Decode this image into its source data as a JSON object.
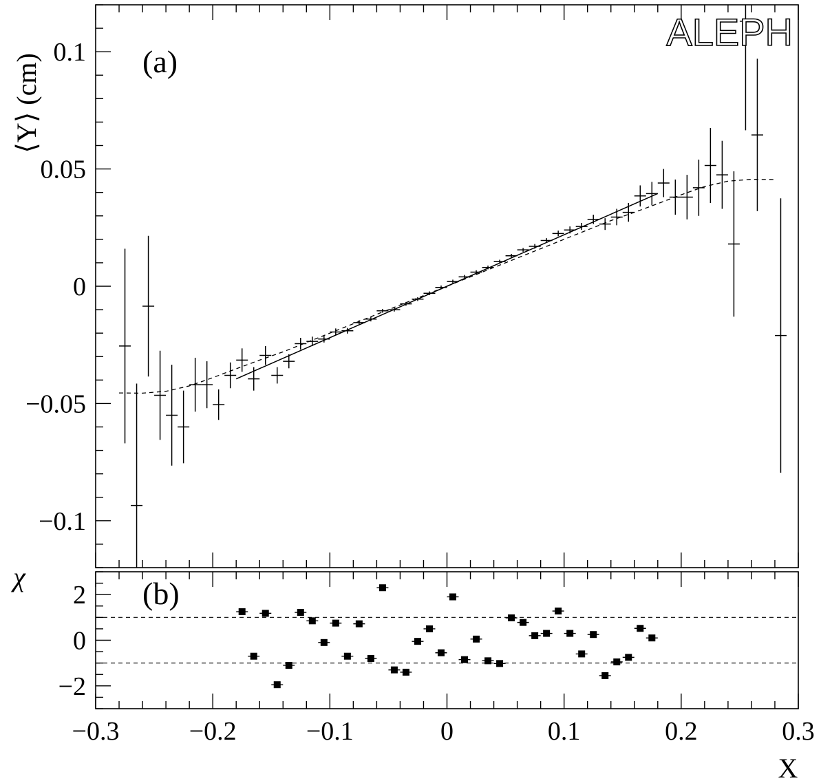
{
  "figure": {
    "experiment_logo": "ALEPH"
  },
  "chart_data": [
    {
      "type": "scatter",
      "panel_label": "(a)",
      "ylabel": "⟨Y⟩ (cm)",
      "xlabel": "",
      "xlim": [
        -0.3,
        0.3
      ],
      "ylim": [
        -0.12,
        0.12
      ],
      "x_ticks": [
        -0.3,
        -0.2,
        -0.1,
        0,
        0.1,
        0.2,
        0.3
      ],
      "y_ticks": [
        -0.1,
        -0.05,
        0,
        0.05,
        0.1
      ],
      "y_tick_labels": [
        "−0.1",
        "−0.05",
        "0",
        "0.05",
        "0.1"
      ],
      "grid": false,
      "series": [
        {
          "style": "data points with error bars",
          "x_halfwidth": 0.005,
          "points": [
            {
              "x": -0.275,
              "y": -0.0255,
              "err": 0.0415
            },
            {
              "x": -0.265,
              "y": -0.0935,
              "err": 0.052
            },
            {
              "x": -0.255,
              "y": -0.0085,
              "err": 0.03
            },
            {
              "x": -0.245,
              "y": -0.0465,
              "err": 0.019
            },
            {
              "x": -0.235,
              "y": -0.055,
              "err": 0.0215
            },
            {
              "x": -0.225,
              "y": -0.06,
              "err": 0.0155
            },
            {
              "x": -0.215,
              "y": -0.042,
              "err": 0.0115
            },
            {
              "x": -0.205,
              "y": -0.042,
              "err": 0.01
            },
            {
              "x": -0.195,
              "y": -0.0505,
              "err": 0.0065
            },
            {
              "x": -0.185,
              "y": -0.038,
              "err": 0.0055
            },
            {
              "x": -0.175,
              "y": -0.0315,
              "err": 0.005
            },
            {
              "x": -0.165,
              "y": -0.0395,
              "err": 0.005
            },
            {
              "x": -0.155,
              "y": -0.0295,
              "err": 0.004
            },
            {
              "x": -0.145,
              "y": -0.038,
              "err": 0.0035
            },
            {
              "x": -0.135,
              "y": -0.032,
              "err": 0.003
            },
            {
              "x": -0.125,
              "y": -0.0245,
              "err": 0.0025
            },
            {
              "x": -0.115,
              "y": -0.0235,
              "err": 0.002
            },
            {
              "x": -0.105,
              "y": -0.0225,
              "err": 0.0015
            },
            {
              "x": -0.095,
              "y": -0.0195,
              "err": 0.0015
            },
            {
              "x": -0.085,
              "y": -0.019,
              "err": 0.0012
            },
            {
              "x": -0.075,
              "y": -0.0155,
              "err": 0.001
            },
            {
              "x": -0.065,
              "y": -0.014,
              "err": 0.001
            },
            {
              "x": -0.055,
              "y": -0.0105,
              "err": 0.0008
            },
            {
              "x": -0.045,
              "y": -0.01,
              "err": 0.0008
            },
            {
              "x": -0.035,
              "y": -0.0075,
              "err": 0.0008
            },
            {
              "x": -0.025,
              "y": -0.0055,
              "err": 0.0008
            },
            {
              "x": -0.015,
              "y": -0.003,
              "err": 0.0008
            },
            {
              "x": -0.005,
              "y": -0.0005,
              "err": 0.0008
            },
            {
              "x": 0.005,
              "y": 0.002,
              "err": 0.0008
            },
            {
              "x": 0.015,
              "y": 0.004,
              "err": 0.0008
            },
            {
              "x": 0.025,
              "y": 0.006,
              "err": 0.0008
            },
            {
              "x": 0.035,
              "y": 0.008,
              "err": 0.0008
            },
            {
              "x": 0.045,
              "y": 0.0105,
              "err": 0.0008
            },
            {
              "x": 0.055,
              "y": 0.013,
              "err": 0.0008
            },
            {
              "x": 0.065,
              "y": 0.0155,
              "err": 0.0008
            },
            {
              "x": 0.075,
              "y": 0.017,
              "err": 0.001
            },
            {
              "x": 0.085,
              "y": 0.0195,
              "err": 0.001
            },
            {
              "x": 0.095,
              "y": 0.0225,
              "err": 0.0012
            },
            {
              "x": 0.105,
              "y": 0.024,
              "err": 0.0015
            },
            {
              "x": 0.115,
              "y": 0.0255,
              "err": 0.0015
            },
            {
              "x": 0.125,
              "y": 0.0285,
              "err": 0.002
            },
            {
              "x": 0.135,
              "y": 0.0265,
              "err": 0.0025
            },
            {
              "x": 0.145,
              "y": 0.0295,
              "err": 0.0035
            },
            {
              "x": 0.155,
              "y": 0.0315,
              "err": 0.004
            },
            {
              "x": 0.165,
              "y": 0.0385,
              "err": 0.0045
            },
            {
              "x": 0.175,
              "y": 0.0395,
              "err": 0.005
            },
            {
              "x": 0.185,
              "y": 0.044,
              "err": 0.006
            },
            {
              "x": 0.195,
              "y": 0.038,
              "err": 0.0075
            },
            {
              "x": 0.205,
              "y": 0.038,
              "err": 0.0095
            },
            {
              "x": 0.215,
              "y": 0.042,
              "err": 0.012
            },
            {
              "x": 0.225,
              "y": 0.0515,
              "err": 0.016
            },
            {
              "x": 0.235,
              "y": 0.0475,
              "err": 0.0145
            },
            {
              "x": 0.245,
              "y": 0.018,
              "err": 0.031
            },
            {
              "x": 0.255,
              "y": 0.113,
              "err": 0.0465
            },
            {
              "x": 0.265,
              "y": 0.0645,
              "err": 0.0325
            },
            {
              "x": 0.285,
              "y": -0.021,
              "err": 0.0585
            }
          ]
        },
        {
          "style": "solid line (linear fit)",
          "x": [
            -0.18,
            0.18
          ],
          "y": [
            -0.0395,
            0.0395
          ]
        },
        {
          "style": "dashed curve",
          "x": [
            -0.28,
            -0.26,
            -0.24,
            -0.22,
            -0.2,
            -0.18,
            -0.16,
            -0.14,
            -0.12,
            -0.1,
            -0.08,
            -0.06,
            -0.04,
            -0.02,
            0,
            0.02,
            0.04,
            0.06,
            0.08,
            0.1,
            0.12,
            0.14,
            0.16,
            0.18,
            0.2,
            0.22,
            0.24,
            0.26,
            0.28
          ],
          "y": [
            -0.0455,
            -0.0456,
            -0.0448,
            -0.0425,
            -0.039,
            -0.0352,
            -0.0315,
            -0.028,
            -0.024,
            -0.02,
            -0.016,
            -0.012,
            -0.008,
            -0.004,
            0.0,
            0.004,
            0.008,
            0.012,
            0.016,
            0.02,
            0.024,
            0.028,
            0.0315,
            0.0352,
            0.039,
            0.0425,
            0.0448,
            0.0456,
            0.0455
          ]
        }
      ]
    },
    {
      "type": "scatter",
      "panel_label": "(b)",
      "ylabel": "χ",
      "xlabel": "X",
      "xlim": [
        -0.3,
        0.3
      ],
      "ylim": [
        -3,
        3
      ],
      "x_ticks": [
        -0.3,
        -0.2,
        -0.1,
        0,
        0.1,
        0.2,
        0.3
      ],
      "x_tick_labels": [
        "−0.3",
        "−0.2",
        "−0.1",
        "0",
        "0.1",
        "0.2",
        "0.3"
      ],
      "y_ticks": [
        -2,
        0,
        2
      ],
      "y_tick_labels": [
        "−2",
        "0",
        "2"
      ],
      "reference_lines": [
        1,
        -1
      ],
      "grid": false,
      "series": [
        {
          "style": "square markers",
          "x_halfwidth": 0.005,
          "points": [
            {
              "x": -0.175,
              "y": 1.25
            },
            {
              "x": -0.165,
              "y": -0.7
            },
            {
              "x": -0.155,
              "y": 1.18
            },
            {
              "x": -0.145,
              "y": -1.95
            },
            {
              "x": -0.135,
              "y": -1.1
            },
            {
              "x": -0.125,
              "y": 1.22
            },
            {
              "x": -0.115,
              "y": 0.85
            },
            {
              "x": -0.105,
              "y": -0.1
            },
            {
              "x": -0.095,
              "y": 0.75
            },
            {
              "x": -0.085,
              "y": -0.7
            },
            {
              "x": -0.075,
              "y": 0.72
            },
            {
              "x": -0.065,
              "y": -0.8
            },
            {
              "x": -0.055,
              "y": 2.3
            },
            {
              "x": -0.045,
              "y": -1.3
            },
            {
              "x": -0.035,
              "y": -1.4
            },
            {
              "x": -0.025,
              "y": -0.05
            },
            {
              "x": -0.015,
              "y": 0.5
            },
            {
              "x": -0.005,
              "y": -0.55
            },
            {
              "x": 0.005,
              "y": 1.9
            },
            {
              "x": 0.015,
              "y": -0.85
            },
            {
              "x": 0.025,
              "y": 0.05
            },
            {
              "x": 0.035,
              "y": -0.9
            },
            {
              "x": 0.045,
              "y": -1.02
            },
            {
              "x": 0.055,
              "y": 0.98
            },
            {
              "x": 0.065,
              "y": 0.78
            },
            {
              "x": 0.075,
              "y": 0.2
            },
            {
              "x": 0.085,
              "y": 0.3
            },
            {
              "x": 0.095,
              "y": 1.28
            },
            {
              "x": 0.105,
              "y": 0.3
            },
            {
              "x": 0.115,
              "y": -0.6
            },
            {
              "x": 0.125,
              "y": 0.25
            },
            {
              "x": 0.135,
              "y": -1.55
            },
            {
              "x": 0.145,
              "y": -0.95
            },
            {
              "x": 0.155,
              "y": -0.75
            },
            {
              "x": 0.165,
              "y": 0.52
            },
            {
              "x": 0.175,
              "y": 0.1
            }
          ]
        }
      ]
    }
  ]
}
